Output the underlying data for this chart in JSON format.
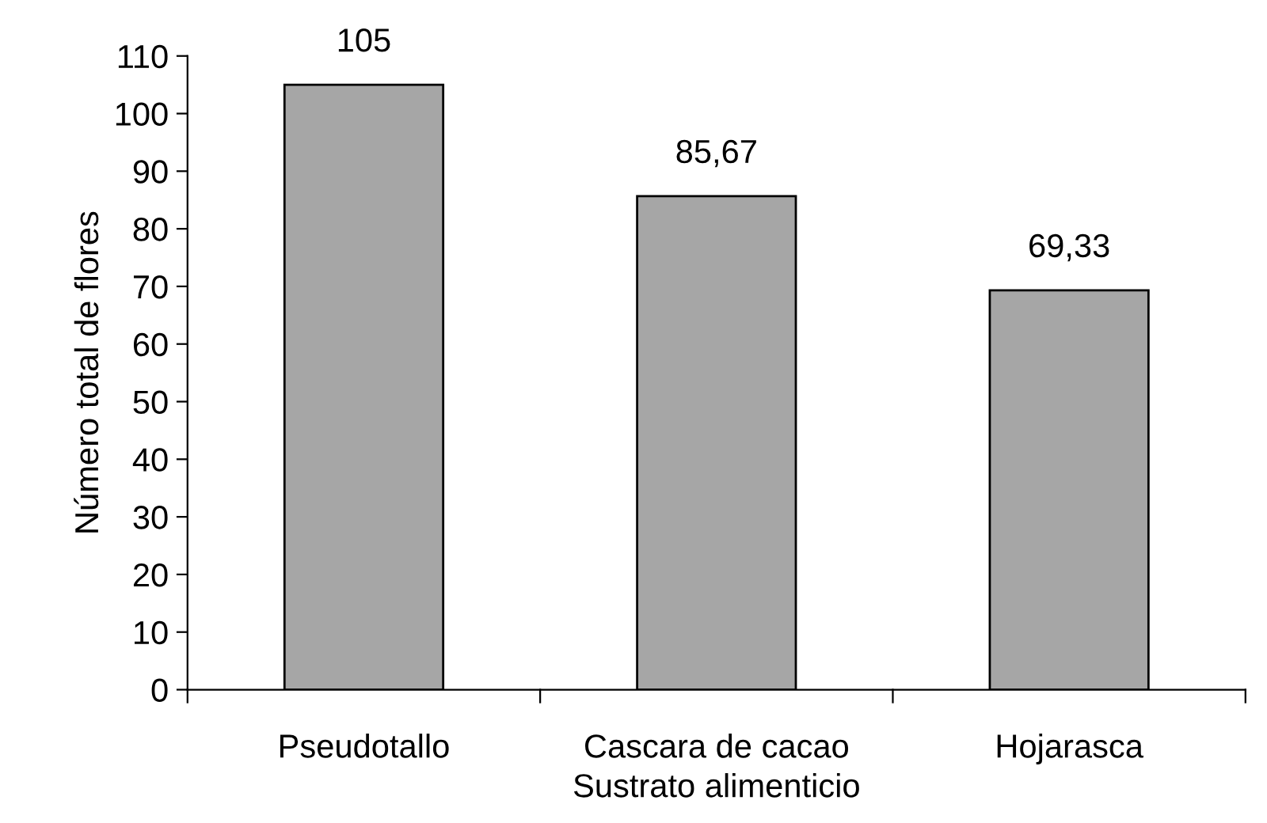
{
  "chart_data": {
    "type": "bar",
    "categories": [
      "Pseudotallo",
      "Cascara de cacao",
      "Hojarasca"
    ],
    "values": [
      105,
      85.67,
      69.33
    ],
    "value_labels": [
      "105",
      "85,67",
      "69,33"
    ],
    "color": "#a6a6a6",
    "xlabel": "Sustrato alimenticio",
    "ylabel": "Número total de flores",
    "ylim": [
      0,
      110
    ],
    "yticks": [
      0,
      10,
      20,
      30,
      40,
      50,
      60,
      70,
      80,
      90,
      100,
      110
    ],
    "grid": false,
    "legend": false
  }
}
